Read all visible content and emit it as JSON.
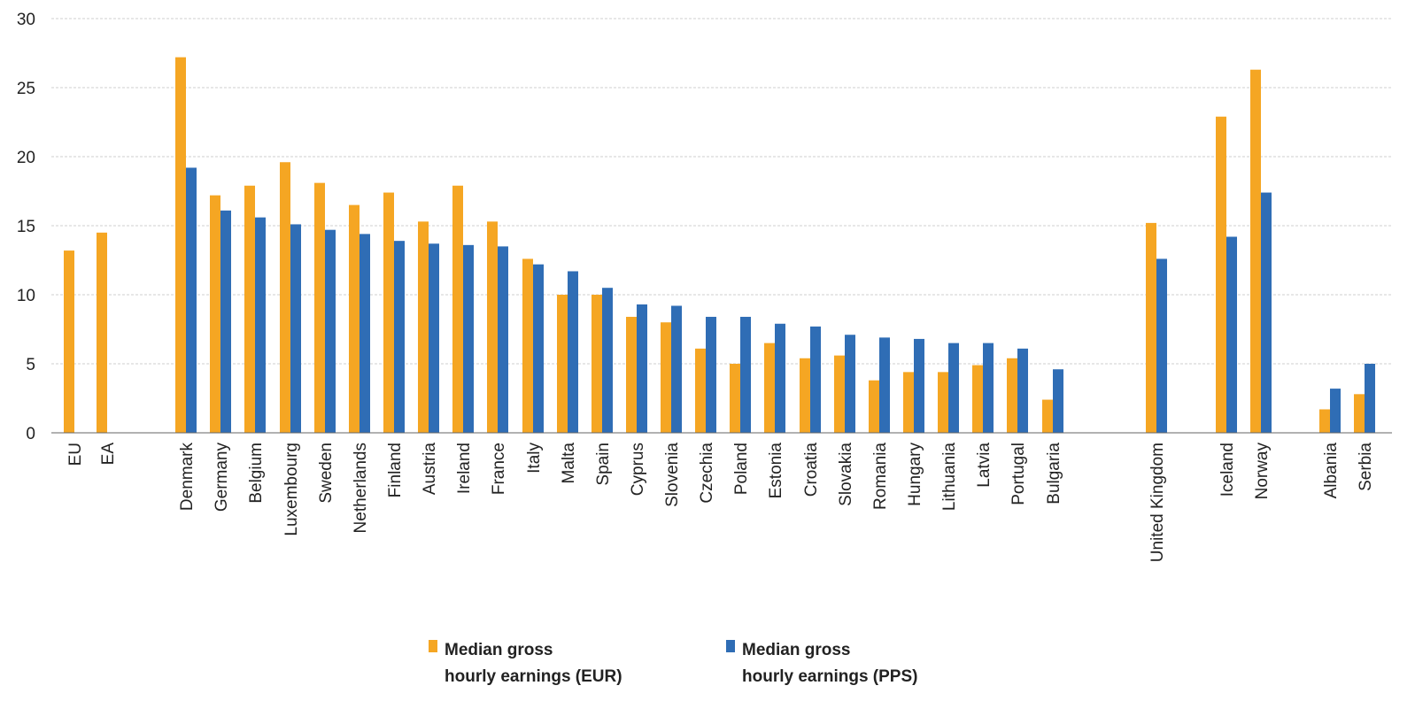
{
  "chart_data": {
    "type": "bar",
    "title": "",
    "xlabel": "",
    "ylabel": "",
    "ylim": [
      0,
      30
    ],
    "yticks": [
      0,
      5,
      10,
      15,
      20,
      25,
      30
    ],
    "grid": true,
    "legend_position": "bottom",
    "categories": [
      "EU",
      "EA",
      "Denmark",
      "Germany",
      "Belgium",
      "Luxembourg",
      "Sweden",
      "Netherlands",
      "Finland",
      "Austria",
      "Ireland",
      "France",
      "Italy",
      "Malta",
      "Spain",
      "Cyprus",
      "Slovenia",
      "Czechia",
      "Poland",
      "Estonia",
      "Croatia",
      "Slovakia",
      "Romania",
      "Hungary",
      "Lithuania",
      "Latvia",
      "Portugal",
      "Bulgaria",
      "United Kingdom",
      "Iceland",
      "Norway",
      "Albania",
      "Serbia"
    ],
    "series": [
      {
        "name": "Median gross hourly earnings (EUR)",
        "legend_lines": [
          "Median gross",
          "hourly earnings (EUR)"
        ],
        "color": "#f5a623",
        "values": [
          13.2,
          14.5,
          27.2,
          17.2,
          17.9,
          19.6,
          18.1,
          16.5,
          17.4,
          15.3,
          17.9,
          15.3,
          12.6,
          10.0,
          10.0,
          8.4,
          8.0,
          6.1,
          5.0,
          6.5,
          5.4,
          5.6,
          3.8,
          4.4,
          4.4,
          4.9,
          5.4,
          2.4,
          15.2,
          22.9,
          26.3,
          1.7,
          2.8
        ]
      },
      {
        "name": "Median gross hourly earnings (PPS)",
        "legend_lines": [
          "Median gross",
          "hourly earnings (PPS)"
        ],
        "color": "#2f6db5",
        "values": [
          null,
          null,
          19.2,
          16.1,
          15.6,
          15.1,
          14.7,
          14.4,
          13.9,
          13.7,
          13.6,
          13.5,
          12.2,
          11.7,
          10.5,
          9.3,
          9.2,
          8.4,
          8.4,
          7.9,
          7.7,
          7.1,
          6.9,
          6.8,
          6.5,
          6.5,
          6.1,
          4.6,
          12.6,
          14.2,
          17.4,
          3.2,
          5.0
        ]
      }
    ]
  }
}
